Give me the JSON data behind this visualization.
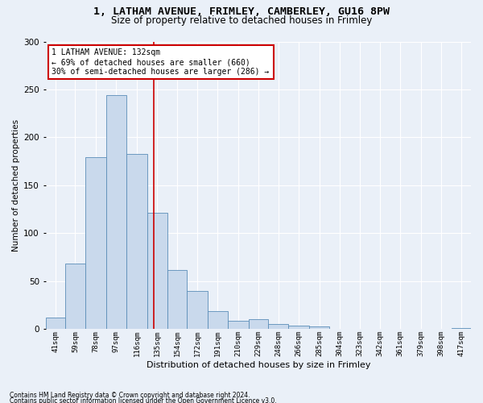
{
  "title1": "1, LATHAM AVENUE, FRIMLEY, CAMBERLEY, GU16 8PW",
  "title2": "Size of property relative to detached houses in Frimley",
  "xlabel": "Distribution of detached houses by size in Frimley",
  "ylabel": "Number of detached properties",
  "footnote1": "Contains HM Land Registry data © Crown copyright and database right 2024.",
  "footnote2": "Contains public sector information licensed under the Open Government Licence v3.0.",
  "annotation_line1": "1 LATHAM AVENUE: 132sqm",
  "annotation_line2": "← 69% of detached houses are smaller (660)",
  "annotation_line3": "30% of semi-detached houses are larger (286) →",
  "bar_color": "#c9d9ec",
  "bar_edge_color": "#5b8db8",
  "vline_color": "#cc0000",
  "vline_x": 132,
  "categories": [
    "41sqm",
    "59sqm",
    "78sqm",
    "97sqm",
    "116sqm",
    "135sqm",
    "154sqm",
    "172sqm",
    "191sqm",
    "210sqm",
    "229sqm",
    "248sqm",
    "266sqm",
    "285sqm",
    "304sqm",
    "323sqm",
    "342sqm",
    "361sqm",
    "379sqm",
    "398sqm",
    "417sqm"
  ],
  "bin_edges": [
    32,
    50,
    69,
    88,
    107,
    126,
    145,
    163,
    182,
    201,
    220,
    238,
    257,
    276,
    295,
    314,
    332,
    351,
    370,
    389,
    408,
    426
  ],
  "values": [
    12,
    68,
    179,
    244,
    183,
    121,
    62,
    40,
    19,
    9,
    10,
    5,
    4,
    3,
    0,
    0,
    0,
    0,
    0,
    0,
    1
  ],
  "ylim": [
    0,
    300
  ],
  "yticks": [
    0,
    50,
    100,
    150,
    200,
    250,
    300
  ],
  "background_color": "#eaf0f8",
  "axes_bg_color": "#eaf0f8",
  "grid_color": "#ffffff",
  "title_fontsize": 9.5,
  "subtitle_fontsize": 8.5,
  "annot_box_color": "#ffffff",
  "annot_box_edge": "#cc0000",
  "ylabel_fontsize": 7.5,
  "xlabel_fontsize": 8,
  "ytick_fontsize": 7.5,
  "xtick_fontsize": 6.5,
  "annot_fontsize": 7,
  "footnote_fontsize": 5.5
}
